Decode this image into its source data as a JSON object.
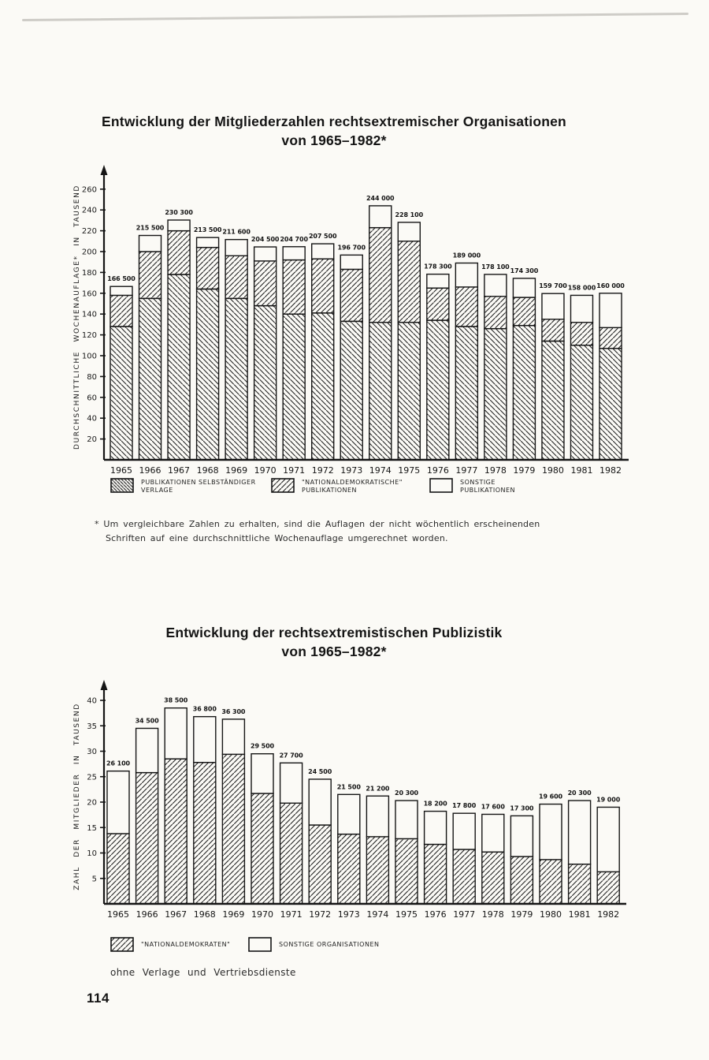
{
  "page": {
    "number": "114"
  },
  "footnote": {
    "lines": [
      "* Um vergleichbare Zahlen zu erhalten, sind die Auflagen der nicht wöchentlich erscheinenden",
      "Schriften auf eine durchschnittliche Wochenauflage umgerechnet worden."
    ]
  },
  "chart_data": [
    {
      "type": "bar",
      "stacked": true,
      "title_lines": [
        "Entwicklung der Mitgliederzahlen rechtsextremischer Organisationen",
        "von 1965–1982*"
      ],
      "title": "Entwicklung der Mitgliederzahlen rechtsextremischer Organisationen von 1965–1982*",
      "ylabel": "DURCHSCHNITTLICHE WOCHENAUFLAGE* IN TAUSEND",
      "xlabel": "",
      "ylim": [
        0,
        260
      ],
      "ytick_step": 20,
      "grid": false,
      "legend_position": "below",
      "unit": "Tausend (thousands)",
      "categories": [
        "1965",
        "1966",
        "1967",
        "1968",
        "1969",
        "1970",
        "1971",
        "1972",
        "1973",
        "1974",
        "1975",
        "1976",
        "1977",
        "1978",
        "1979",
        "1980",
        "1981",
        "1982"
      ],
      "series": [
        {
          "name": "PUBLIKATIONEN SELBSTÄNDIGER VERLAGE",
          "pattern": "backhatch",
          "values": [
            128,
            155,
            178,
            164,
            155,
            148,
            140,
            141,
            133,
            132,
            132,
            134,
            128,
            126,
            129,
            114,
            110,
            107
          ]
        },
        {
          "name": "\"NATIONALDEMOKRATISCHE\" PUBLIKATIONEN",
          "pattern": "fwdhatch",
          "values": [
            30,
            45,
            42,
            40,
            41,
            43,
            52,
            52,
            50,
            91,
            78,
            31,
            38,
            31,
            27,
            21,
            22,
            20
          ]
        },
        {
          "name": "SONSTIGE PUBLIKATIONEN",
          "pattern": "white",
          "values": [
            8.5,
            15.5,
            10.3,
            9.5,
            15.6,
            13.5,
            12.7,
            14.5,
            13.7,
            21.0,
            18.1,
            13.3,
            23.0,
            21.1,
            18.3,
            24.7,
            26.0,
            33.0
          ]
        }
      ],
      "totals": [
        166.5,
        215.5,
        230.3,
        213.5,
        211.6,
        204.5,
        204.7,
        207.5,
        196.7,
        244.0,
        228.1,
        178.3,
        189.0,
        178.1,
        174.3,
        159.7,
        158.0,
        160.0
      ],
      "total_labels": [
        "166 500",
        "215 500",
        "230 300",
        "213 500",
        "211 600",
        "204 500",
        "204 700",
        "207 500",
        "196 700",
        "244 000",
        "228 100",
        "178 300",
        "189 000",
        "178 100",
        "174 300",
        "159 700",
        "158 000",
        "160 000"
      ],
      "legend": [
        {
          "line1": "PUBLIKATIONEN  SELBSTÄNDIGER",
          "line2": "VERLAGE",
          "pattern": "backhatch-dense"
        },
        {
          "line1": "\"NATIONALDEMOKRATISCHE\"",
          "line2": "PUBLIKATIONEN",
          "pattern": "fwdhatch"
        },
        {
          "line1": "SONSTIGE",
          "line2": "PUBLIKATIONEN",
          "pattern": "white"
        }
      ]
    },
    {
      "type": "bar",
      "stacked": true,
      "title_lines": [
        "Entwicklung der rechtsextremistischen Publizistik",
        "von 1965–1982*"
      ],
      "title": "Entwicklung der rechtsextremistischen Publizistik von 1965–1982*",
      "ylabel": "ZAHL DER MITGLIEDER IN TAUSEND",
      "xlabel": "",
      "ylim": [
        0,
        40
      ],
      "ytick_step": 5,
      "grid": false,
      "legend_position": "below",
      "unit": "Tausend (thousands)",
      "categories": [
        "1965",
        "1966",
        "1967",
        "1968",
        "1969",
        "1970",
        "1971",
        "1972",
        "1973",
        "1974",
        "1975",
        "1976",
        "1977",
        "1978",
        "1979",
        "1980",
        "1981",
        "1982"
      ],
      "series": [
        {
          "name": "\"NATIONALDEMOKRATEN\"",
          "pattern": "fwdhatch",
          "values": [
            13.8,
            25.8,
            28.5,
            27.8,
            29.4,
            21.7,
            19.8,
            15.5,
            13.7,
            13.2,
            12.8,
            11.7,
            10.7,
            10.2,
            9.3,
            8.7,
            7.8,
            6.3
          ]
        },
        {
          "name": "SONSTIGE ORGANISATIONEN",
          "pattern": "white",
          "values": [
            12.3,
            8.7,
            10.0,
            9.0,
            6.9,
            7.8,
            7.9,
            9.0,
            7.8,
            8.0,
            7.5,
            6.5,
            7.1,
            7.4,
            8.0,
            10.9,
            12.5,
            12.7
          ]
        }
      ],
      "totals": [
        26.1,
        34.5,
        38.5,
        36.8,
        36.3,
        29.5,
        27.7,
        24.5,
        21.5,
        21.2,
        20.3,
        18.2,
        17.8,
        17.6,
        17.3,
        19.6,
        20.3,
        19.0
      ],
      "total_labels": [
        "26 100",
        "34 500",
        "38 500",
        "36 800",
        "36 300",
        "29 500",
        "27 700",
        "24 500",
        "21 500",
        "21 200",
        "20 300",
        "18 200",
        "17 800",
        "17 600",
        "17 300",
        "19 600",
        "20 300",
        "19 000"
      ],
      "legend": [
        {
          "line1": "\"NATIONALDEMOKRATEN\"",
          "line2": "",
          "pattern": "fwdhatch"
        },
        {
          "line1": "SONSTIGE  ORGANISATIONEN",
          "line2": "",
          "pattern": "white"
        }
      ],
      "note": "ohne  Verlage  und  Vertriebsdienste"
    }
  ]
}
